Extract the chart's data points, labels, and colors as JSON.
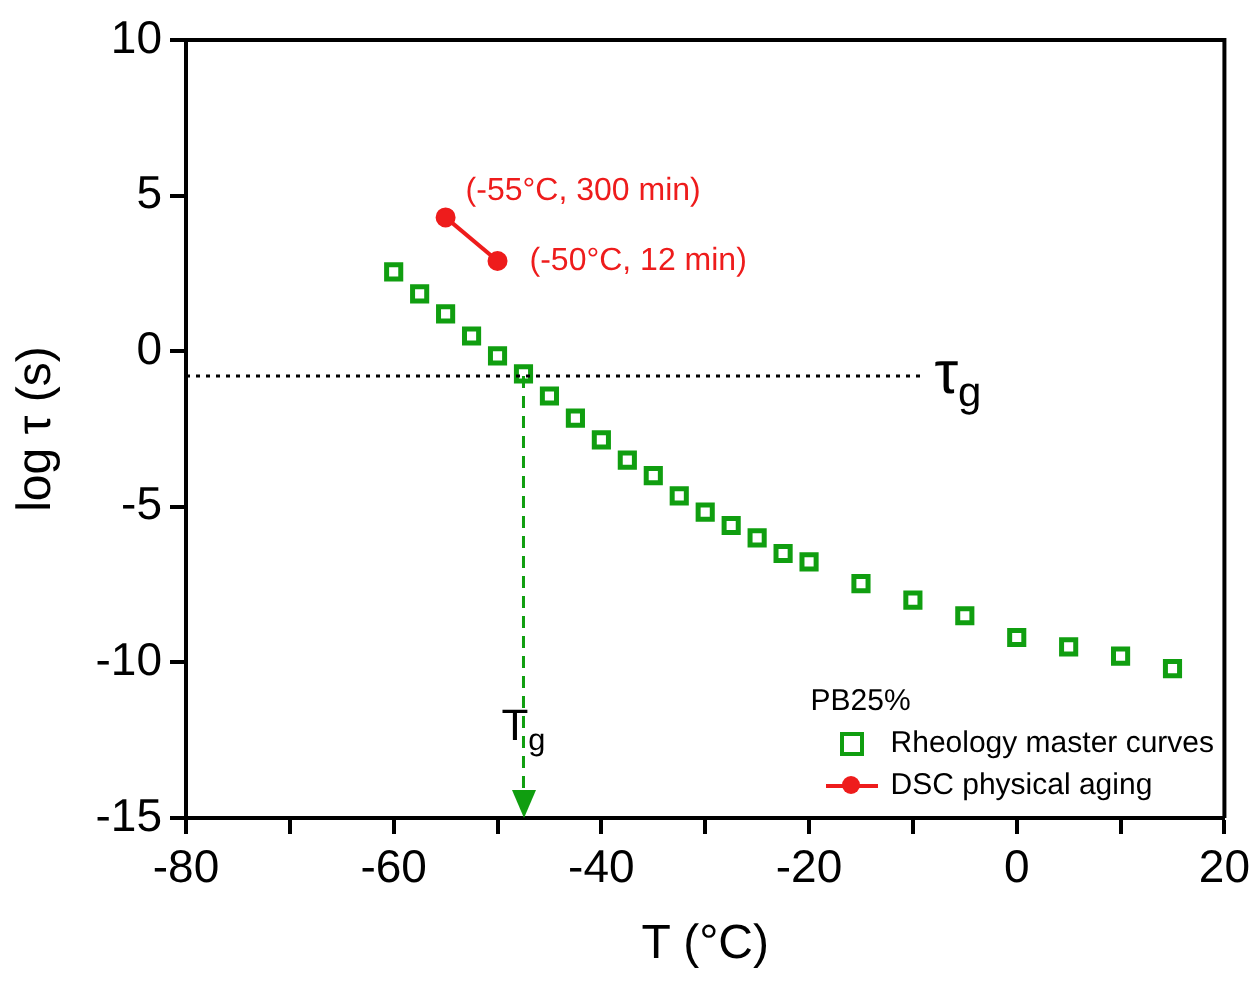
{
  "chart_data": {
    "type": "scatter",
    "xlabel": "T (°C)",
    "ylabel": "log τ (s)",
    "legend_title": "PB25%",
    "legend": "bottom right",
    "grid": false,
    "xlim": [
      -80,
      20
    ],
    "xticks": [
      -80,
      {
        "value": -70,
        "label": null
      },
      -60,
      {
        "value": -50,
        "label": null
      },
      -40,
      {
        "value": -30,
        "label": null
      },
      -20,
      {
        "value": -10,
        "label": null
      },
      0,
      {
        "value": 10,
        "label": null
      },
      20
    ],
    "ylim": [
      -15,
      10
    ],
    "yticks": [
      -15,
      -10,
      -5,
      0,
      5,
      10
    ],
    "series": [
      {
        "name": "Rheology master curves",
        "color": "#109e10",
        "marker": "square",
        "x": [
          -60,
          -57.5,
          -55,
          -52.5,
          -50,
          -47.5,
          -45,
          -42.5,
          -40,
          -37.5,
          -35,
          -32.5,
          -30,
          -27.5,
          -25,
          -22.5,
          -20,
          -15,
          -10,
          -5,
          0,
          5,
          10,
          15
        ],
        "values": [
          2.55,
          1.84,
          1.2,
          0.49,
          -0.15,
          -0.73,
          -1.44,
          -2.15,
          -2.85,
          -3.5,
          -4.0,
          -4.65,
          -5.17,
          -5.6,
          -6.0,
          -6.5,
          -6.77,
          -7.47,
          -8.0,
          -8.5,
          -9.2,
          -9.5,
          -9.8,
          -10.2
        ]
      },
      {
        "name": "DSC physical aging",
        "color": "#ee1c1c",
        "type": "line",
        "marker": "circle",
        "x": [
          -55,
          -50
        ],
        "values": [
          4.3,
          2.9
        ]
      }
    ],
    "ref_lines": [
      {
        "axis": "y",
        "value": -0.8,
        "label": "τ$_{g}$",
        "color": "#000000",
        "line_style": "dotted"
      },
      {
        "axis": "x",
        "value": -47.5,
        "label": "T$_{g}$",
        "color": "#109e10",
        "line_style": "dashed"
      }
    ],
    "annotations": [
      {
        "text": "(-55°C, 300 min)",
        "x": -55,
        "y": 4.3
      },
      {
        "text": "(-50°C, 12 min)",
        "x": -50,
        "y": 2.9
      }
    ]
  }
}
